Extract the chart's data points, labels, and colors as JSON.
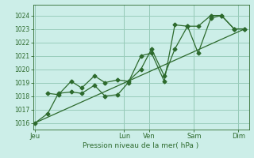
{
  "title": "Pression niveau de la mer( hPa )",
  "bg_color": "#cceee8",
  "grid_color": "#99ccbb",
  "line_color": "#2d6a2d",
  "ylim": [
    1015.5,
    1024.8
  ],
  "yticks": [
    1016,
    1017,
    1018,
    1019,
    1020,
    1021,
    1022,
    1023,
    1024
  ],
  "day_labels": [
    "Jeu",
    "Lun",
    "Ven",
    "Sam",
    "Dim"
  ],
  "day_positions": [
    0.0,
    0.42,
    0.54,
    0.75,
    0.96
  ],
  "line1_x": [
    0.0,
    0.06,
    0.11,
    0.17,
    0.22,
    0.28,
    0.33,
    0.39,
    0.44,
    0.5,
    0.55,
    0.61,
    0.66,
    0.72,
    0.77,
    0.83,
    0.88,
    0.94,
    0.99
  ],
  "line1_y": [
    1016.0,
    1016.7,
    1018.2,
    1018.3,
    1018.2,
    1018.8,
    1018.0,
    1018.1,
    1019.0,
    1021.0,
    1021.2,
    1019.1,
    1023.3,
    1023.2,
    1023.2,
    1024.0,
    1024.0,
    1023.0,
    1023.0
  ],
  "line2_x": [
    0.06,
    0.11,
    0.17,
    0.22,
    0.28,
    0.33,
    0.39,
    0.44,
    0.5,
    0.55,
    0.61,
    0.66,
    0.72,
    0.77,
    0.83,
    0.88,
    0.94,
    0.99
  ],
  "line2_y": [
    1018.2,
    1018.1,
    1019.1,
    1018.6,
    1019.5,
    1019.0,
    1019.2,
    1019.1,
    1020.0,
    1021.5,
    1019.5,
    1021.5,
    1023.2,
    1021.2,
    1023.8,
    1024.0,
    1023.0,
    1023.0
  ],
  "line3_x": [
    0.0,
    0.99
  ],
  "line3_y": [
    1016.0,
    1023.0
  ],
  "xlim": [
    -0.01,
    1.01
  ]
}
